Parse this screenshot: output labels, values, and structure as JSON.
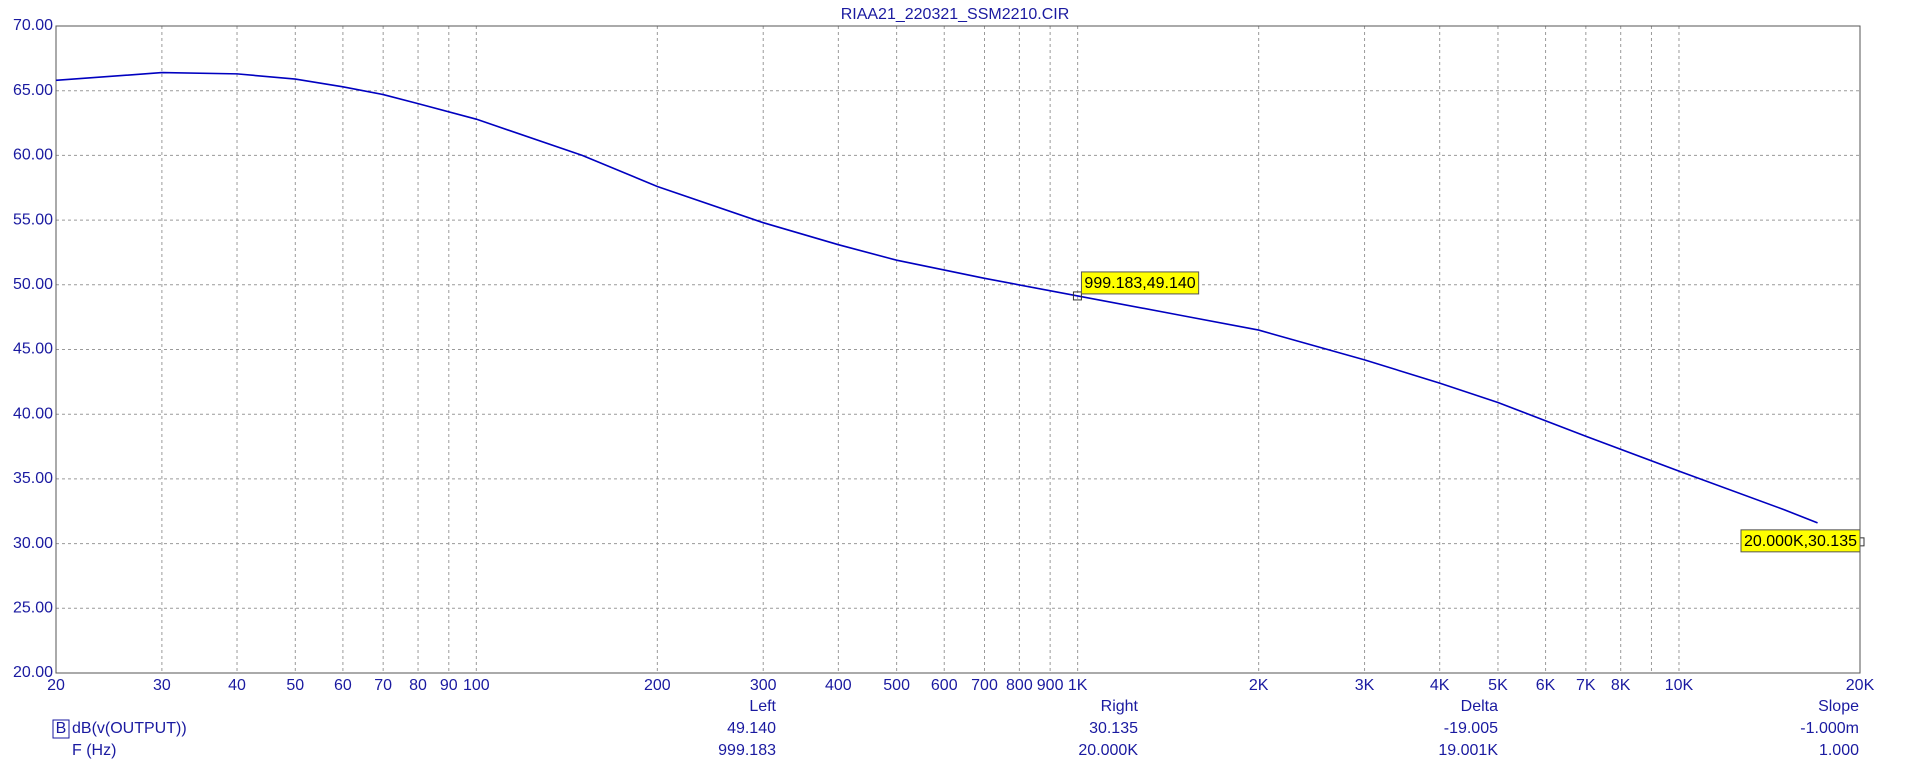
{
  "chart_data": {
    "type": "line",
    "title": "RIAA21_220321_SSM2210.CIR",
    "x": [
      20,
      30,
      40,
      50,
      60,
      70,
      80,
      100,
      150,
      200,
      300,
      400,
      500,
      700,
      1000,
      1500,
      2000,
      3000,
      4000,
      5000,
      7000,
      10000,
      15000,
      17000
    ],
    "series": [
      {
        "name": "dB(v(OUTPUT))",
        "color": "#0000c0",
        "values": [
          65.8,
          66.4,
          66.3,
          65.9,
          65.3,
          64.7,
          64.0,
          62.8,
          60.0,
          57.6,
          54.8,
          53.1,
          51.9,
          50.5,
          49.14,
          47.6,
          46.5,
          44.2,
          42.4,
          40.9,
          38.3,
          35.6,
          32.6,
          31.6
        ]
      }
    ],
    "xlim": [
      20,
      20000
    ],
    "ylim": [
      20,
      70
    ],
    "log_x": true,
    "grid": true,
    "xticks": [
      20,
      30,
      40,
      50,
      60,
      70,
      80,
      90,
      100,
      200,
      300,
      400,
      500,
      600,
      700,
      800,
      900,
      {
        "value": 1000,
        "label": "1K"
      },
      {
        "value": 2000,
        "label": "2K"
      },
      {
        "value": 3000,
        "label": "3K"
      },
      {
        "value": 4000,
        "label": "4K"
      },
      {
        "value": 5000,
        "label": "5K"
      },
      {
        "value": 6000,
        "label": "6K"
      },
      {
        "value": 7000,
        "label": "7K"
      },
      {
        "value": 8000,
        "label": "8K"
      },
      {
        "value": 9000,
        "label": ""
      },
      {
        "value": 10000,
        "label": "10K"
      },
      {
        "value": 20000,
        "label": "20K"
      }
    ],
    "yticks": [
      {
        "value": 20,
        "label": "20.00"
      },
      {
        "value": 25,
        "label": "25.00"
      },
      {
        "value": 30,
        "label": "30.00"
      },
      {
        "value": 35,
        "label": "35.00"
      },
      {
        "value": 40,
        "label": "40.00"
      },
      {
        "value": 45,
        "label": "45.00"
      },
      {
        "value": 50,
        "label": "50.00"
      },
      {
        "value": 55,
        "label": "55.00"
      },
      {
        "value": 60,
        "label": "60.00"
      },
      {
        "value": 65,
        "label": "65.00"
      },
      {
        "value": 70,
        "label": "70.00"
      }
    ],
    "cursors": [
      {
        "x": 999.183,
        "y": 49.14,
        "label": "999.183,49.140"
      },
      {
        "x": 20000,
        "y": 30.135,
        "label": "20.000K,30.135"
      }
    ],
    "cursor_table": {
      "columns": [
        "Left",
        "Right",
        "Delta",
        "Slope"
      ],
      "rows": [
        {
          "marker": "B",
          "label": "dB(v(OUTPUT))",
          "cells": [
            "49.140",
            "30.135",
            "-19.005",
            "-1.000m"
          ]
        },
        {
          "label": "F (Hz)",
          "cells": [
            "999.183",
            "20.000K",
            "19.001K",
            "1.000"
          ]
        }
      ]
    }
  }
}
